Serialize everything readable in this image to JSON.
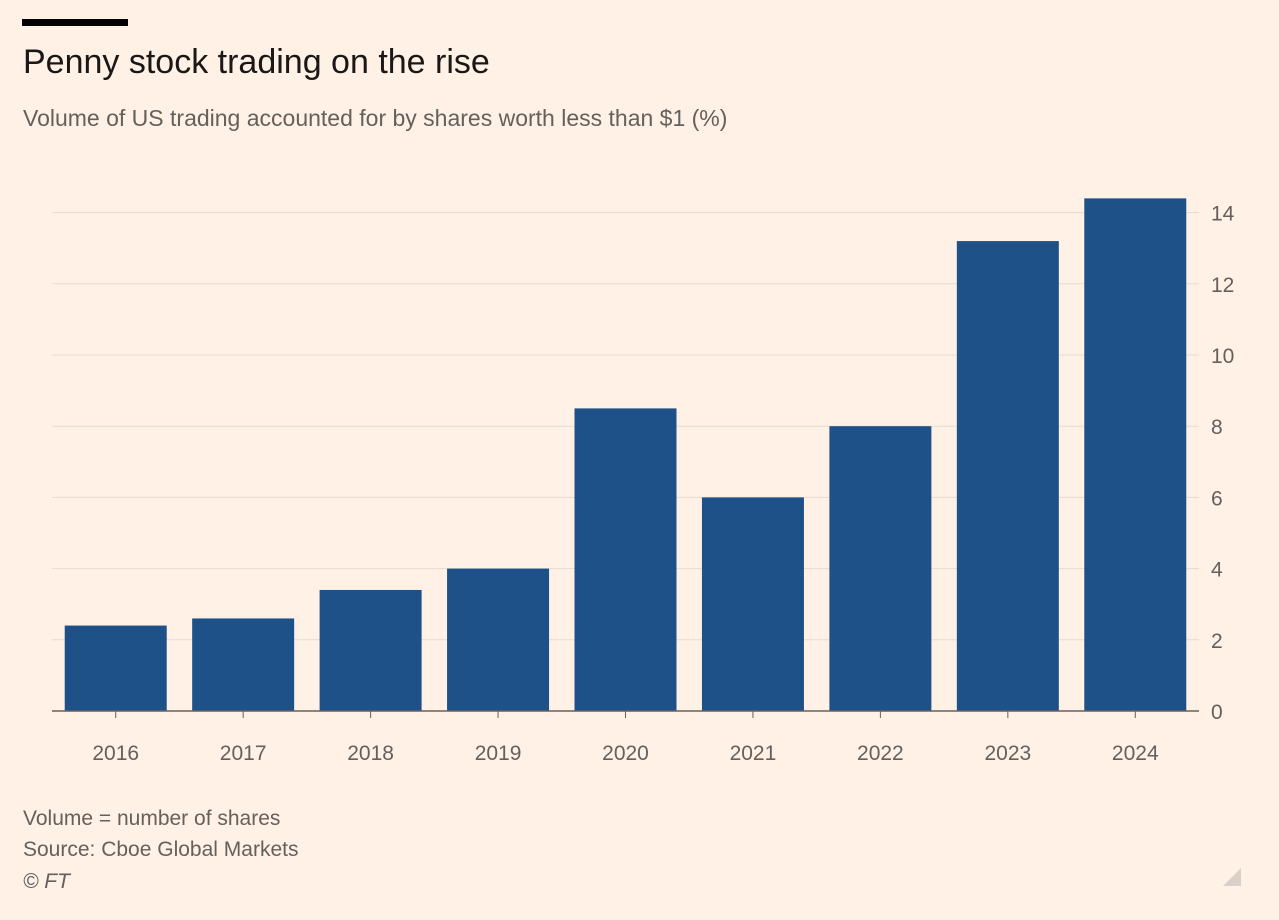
{
  "header": {
    "title": "Penny stock trading on the rise",
    "subtitle": "Volume of US trading accounted for by shares worth less than $1 (%)"
  },
  "chart_data": {
    "type": "bar",
    "title": "Penny stock trading on the rise",
    "subtitle": "Volume of US trading accounted for by shares worth less than $1 (%)",
    "categories": [
      "2016",
      "2017",
      "2018",
      "2019",
      "2020",
      "2021",
      "2022",
      "2023",
      "2024"
    ],
    "values": [
      2.4,
      2.6,
      3.4,
      4.0,
      8.5,
      6.0,
      8.0,
      13.2,
      14.4
    ],
    "ylim": [
      0,
      14
    ],
    "yticks": [
      0,
      2,
      4,
      6,
      8,
      10,
      12,
      14
    ],
    "y_axis_side": "right",
    "xlabel": "",
    "ylabel": "",
    "grid": true,
    "bar_color": "#1F5189"
  },
  "footer": {
    "note": "Volume = number of shares",
    "source": "Source: Cboe Global Markets",
    "copyright": "© FT"
  }
}
